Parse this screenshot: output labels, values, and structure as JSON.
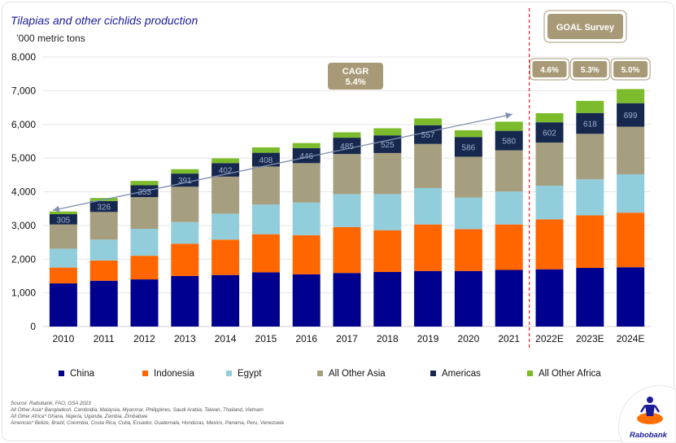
{
  "header": {
    "title": "Tilapias and other cichlids production",
    "unit": "’000 metric tons"
  },
  "colors": {
    "China": "#00008f",
    "Indonesia": "#ff6600",
    "Egypt": "#92cddc",
    "All Other Asia": "#a59f7f",
    "Americas": "#17284e",
    "All Other Africa": "#7cbc2c",
    "callout_box": "#a89a77",
    "divider": "#e0202e",
    "trend_arrow": "#7f8faf"
  },
  "callouts": {
    "cagr_label": "CAGR",
    "cagr_value": "5.4%",
    "goal_label": "GOAL Survey",
    "goal_rates": [
      "4.6%",
      "5.3%",
      "5.0%"
    ]
  },
  "footnotes": [
    "Source: Rabobank, FAO, GSA 2023",
    "All Other Asia* Bangladesh, Cambodia, Malaysia, Myanmar, Philippines, Saudi Arabia, Taiwan, Thailand, Vietnam",
    "All Other Africa* Ghana, Nigeria, Uganda, Zambia, Zimbabwe",
    "Americas* Belize, Brazil, Colombia, Costa Rica, Cuba, Ecuador, Guatemala, Honduras, Mexico, Panama, Peru, Venezuela"
  ],
  "logo": {
    "text": "Rabobank"
  },
  "chart_data": {
    "type": "bar",
    "stacked": true,
    "categories": [
      "2010",
      "2011",
      "2012",
      "2013",
      "2014",
      "2015",
      "2016",
      "2017",
      "2018",
      "2019",
      "2020",
      "2021",
      "2022E",
      "2023E",
      "2024E"
    ],
    "series": [
      {
        "name": "China",
        "values": [
          1280,
          1360,
          1400,
          1500,
          1530,
          1610,
          1550,
          1590,
          1620,
          1650,
          1650,
          1680,
          1700,
          1740,
          1760
        ]
      },
      {
        "name": "Indonesia",
        "values": [
          470,
          600,
          700,
          960,
          1050,
          1130,
          1160,
          1360,
          1240,
          1380,
          1240,
          1350,
          1480,
          1560,
          1620
        ]
      },
      {
        "name": "Egypt",
        "values": [
          560,
          620,
          800,
          640,
          770,
          880,
          970,
          980,
          1070,
          1080,
          940,
          980,
          1000,
          1070,
          1140
        ]
      },
      {
        "name": "All Other Asia",
        "values": [
          720,
          820,
          940,
          1050,
          1100,
          1130,
          1170,
          1190,
          1220,
          1310,
          1210,
          1220,
          1280,
          1350,
          1410
        ]
      },
      {
        "name": "Americas",
        "values": [
          305,
          326,
          353,
          391,
          402,
          408,
          446,
          485,
          525,
          557,
          586,
          580,
          602,
          618,
          699
        ]
      },
      {
        "name": "All Other Africa",
        "values": [
          80,
          90,
          130,
          130,
          140,
          160,
          150,
          160,
          210,
          200,
          200,
          270,
          270,
          360,
          420
        ]
      }
    ],
    "data_labels": {
      "series": "Americas",
      "values": [
        "305",
        "326",
        "353",
        "391",
        "402",
        "408",
        "446",
        "485",
        "525",
        "557",
        "586",
        "580",
        "602",
        "618",
        "699"
      ]
    },
    "ylim": [
      0,
      8000
    ],
    "yticks": [
      0,
      1000,
      2000,
      3000,
      4000,
      5000,
      6000,
      7000,
      8000
    ],
    "ytick_labels": [
      "0",
      "1,000",
      "2,000",
      "3,000",
      "4,000",
      "5,000",
      "6,000",
      "7,000",
      "8,000"
    ],
    "xlabel": "",
    "ylabel": "’000 metric tons",
    "grid": true,
    "legend_position": "bottom",
    "annotations": {
      "trend_arrow": {
        "from_category": "2010",
        "to_category": "2021",
        "y_start": 3450,
        "y_end": 6300
      },
      "forecast_divider_after": "2021"
    }
  }
}
